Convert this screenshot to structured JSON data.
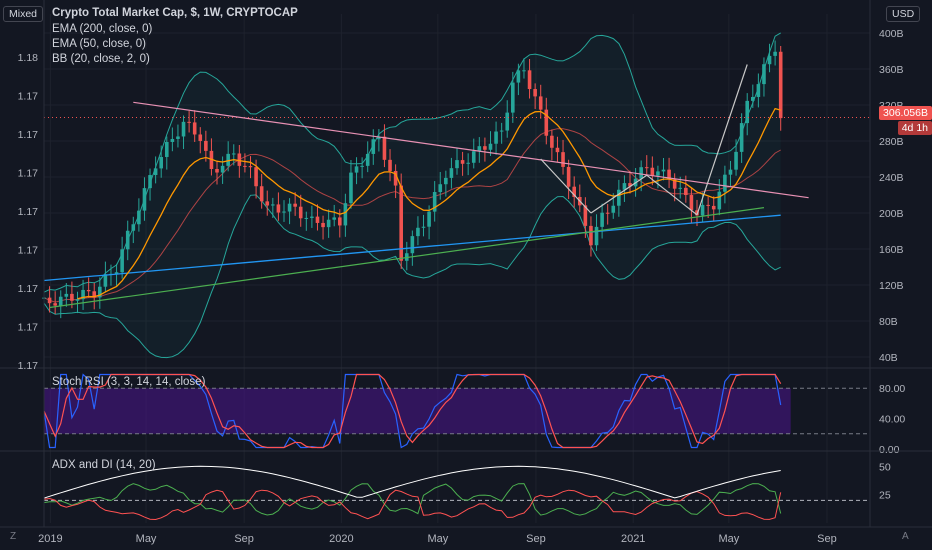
{
  "header": {
    "mode_button": "Mixed",
    "title": "Crypto Total Market Cap, $, 1W, CRYPTOCAP",
    "indicators": [
      "EMA (200, close, 0)",
      "EMA (50, close, 0)",
      "BB (20, close, 2, 0)"
    ],
    "currency_button": "USD"
  },
  "left_scale": [
    "1.18",
    "1.17",
    "1.17",
    "1.17",
    "1.17",
    "1.17",
    "1.17",
    "1.17",
    "1.17"
  ],
  "price_tag": {
    "value": "306.056B",
    "countdown": "4d 1h",
    "color": "#ef5350"
  },
  "colors": {
    "up": "#26a69a",
    "down": "#ef5350",
    "bg": "#131722",
    "ema200": "#2196f3",
    "ema50": "#ff9800",
    "bb_band": "#26a69a",
    "bb_basis": "#ef5350",
    "support": "#4caf50",
    "resistance": "#e891b4",
    "rsi_k": "#2962ff",
    "rsi_d": "#ff5252",
    "rsi_fill": "#4a148c",
    "adx": "#ffffff",
    "di_plus": "#4caf50",
    "di_minus": "#ff5252"
  },
  "panes": {
    "stoch_label": "Stoch RSI (3, 3, 14, 14, close)",
    "stoch_ticks": [
      "80.00",
      "40.00",
      "0.00"
    ],
    "adx_label": "ADX and DI (14, 20)",
    "adx_ticks": [
      "50",
      "25"
    ]
  },
  "time_axis": [
    "2019",
    "May",
    "Sep",
    "2020",
    "May",
    "Sep",
    "2021",
    "May",
    "Sep"
  ],
  "corners": {
    "z": "Z",
    "a": "A"
  },
  "chart_data": {
    "type": "candlestick",
    "symbol": "CRYPTOCAP:TOTAL",
    "interval": "1W",
    "y_unit": "USD (billions)",
    "y_ticks": [
      40,
      80,
      120,
      160,
      200,
      240,
      280,
      320,
      360,
      400
    ],
    "ylim": [
      30,
      410
    ],
    "x_range": [
      "2018-12-24",
      "2021-10-25"
    ],
    "last_price": 306.056,
    "trend_segments": [
      {
        "name": "descending-resistance",
        "from": [
          "2019-04-15",
          323
        ],
        "to": [
          "2021-08-09",
          217
        ]
      },
      {
        "name": "ascending-support",
        "from": [
          "2018-12-31",
          95
        ],
        "to": [
          "2021-06-14",
          206
        ]
      },
      {
        "name": "zigzag-1",
        "from": [
          "2020-09-07",
          260
        ],
        "to": [
          "2020-11-09",
          200
        ]
      },
      {
        "name": "zigzag-2",
        "from": [
          "2020-11-09",
          200
        ],
        "to": [
          "2021-01-18",
          242
        ]
      },
      {
        "name": "zigzag-3",
        "from": [
          "2021-01-18",
          242
        ],
        "to": [
          "2021-03-22",
          198
        ]
      },
      {
        "name": "zigzag-4",
        "from": [
          "2021-03-22",
          198
        ],
        "to": [
          "2021-05-24",
          365
        ]
      }
    ],
    "stoch_rsi": {
      "range": [
        0,
        100
      ],
      "bands": [
        80,
        20
      ]
    },
    "adx_di": {
      "range": [
        0,
        60
      ],
      "level": 20
    }
  }
}
